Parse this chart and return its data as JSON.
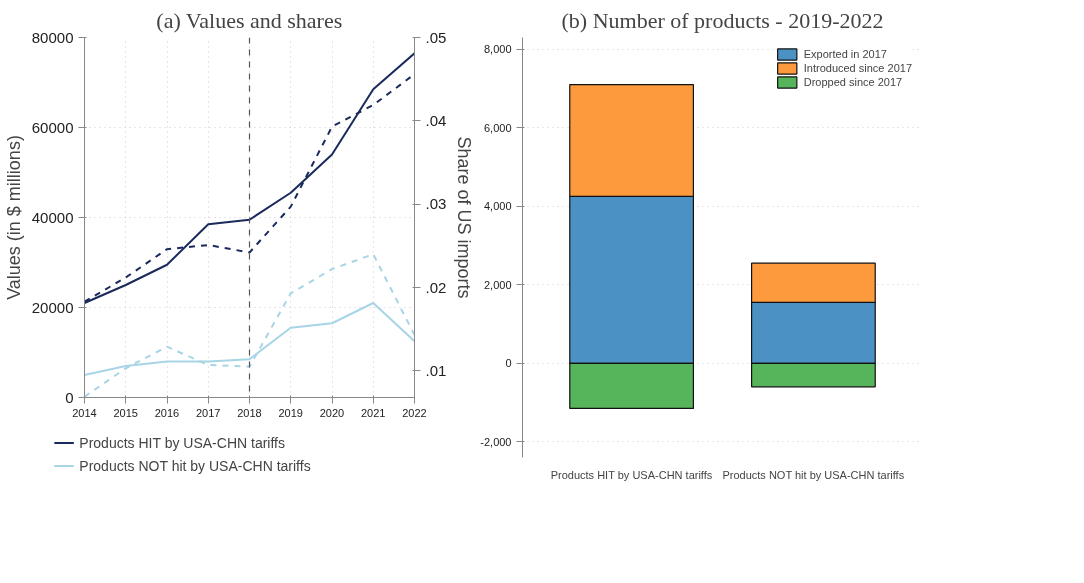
{
  "chart_data": [
    {
      "type": "line",
      "title": "(a) Values and shares",
      "ylabel": "Values (in $ millions)",
      "y2label": "Share of US imports",
      "x": [
        2014,
        2015,
        2016,
        2017,
        2018,
        2019,
        2020,
        2021,
        2022
      ],
      "series": [
        {
          "name": "Products HIT by USA-CHN tariffs",
          "color": "#1b2a5c",
          "line_style": "solid",
          "values": [
            21000,
            25000,
            29500,
            38500,
            39500,
            45500,
            54000,
            68500,
            76500
          ]
        },
        {
          "name": "Products NOT hit by USA-CHN tariffs",
          "color": "#a8d5e6",
          "line_style": "solid",
          "values": [
            5000,
            7000,
            8000,
            8000,
            8500,
            15500,
            16500,
            21000,
            12500
          ]
        },
        {
          "color": "#1b2a5c",
          "line_style": "dashed",
          "axis": "y2",
          "values": [
            0.0183,
            0.0212,
            0.0246,
            0.0251,
            0.0242,
            0.0297,
            0.0393,
            0.0419,
            0.0456
          ]
        },
        {
          "color": "#a8d5e6",
          "line_style": "dashed",
          "axis": "y2",
          "values": [
            0.0069,
            0.0103,
            0.0129,
            0.0107,
            0.0105,
            0.0193,
            0.0222,
            0.024,
            0.0143
          ]
        }
      ],
      "xlim": [
        2014,
        2022
      ],
      "xticks": [
        2014,
        2015,
        2016,
        2017,
        2018,
        2019,
        2020,
        2021,
        2022
      ],
      "ylim": [
        0,
        80000
      ],
      "yticks": [
        0,
        20000,
        40000,
        60000,
        80000
      ],
      "y2lim": [
        0.0068,
        0.05
      ],
      "y2ticks": [
        {
          "value": 0.01,
          "label": ".01"
        },
        {
          "value": 0.02,
          "label": ".02"
        },
        {
          "value": 0.03,
          "label": ".03"
        },
        {
          "value": 0.04,
          "label": ".04"
        },
        {
          "value": 0.05,
          "label": ".05"
        }
      ],
      "ref_lines": [
        {
          "axis": "x",
          "value": 2018,
          "color": "#555555",
          "line_style": "dashed"
        }
      ],
      "grid": true,
      "legend": "bottom"
    },
    {
      "type": "bar",
      "stacked": true,
      "title": "(b) Number of products - 2019-2022",
      "categories": [
        "Products HIT by USA-CHN tariffs",
        "Products NOT hit by USA-CHN tariffs"
      ],
      "series": [
        {
          "name": "Exported in 2017",
          "color": "#4b91c3",
          "values": [
            4250,
            1550
          ]
        },
        {
          "name": "Introduced since 2017",
          "color": "#fc9a3d",
          "values": [
            2850,
            1000
          ]
        },
        {
          "name": "Dropped since 2017",
          "color": "#56b45a",
          "values": [
            -1150,
            -600
          ]
        }
      ],
      "ylim": [
        -2400,
        8300
      ],
      "yticks": [
        {
          "value": -2000,
          "label": "-2,000"
        },
        0,
        {
          "value": 2000,
          "label": "2,000"
        },
        {
          "value": 4000,
          "label": "4,000"
        },
        {
          "value": 6000,
          "label": "6,000"
        },
        {
          "value": 8000,
          "label": "8,000"
        }
      ],
      "grid": "y",
      "legend": "top right"
    }
  ]
}
